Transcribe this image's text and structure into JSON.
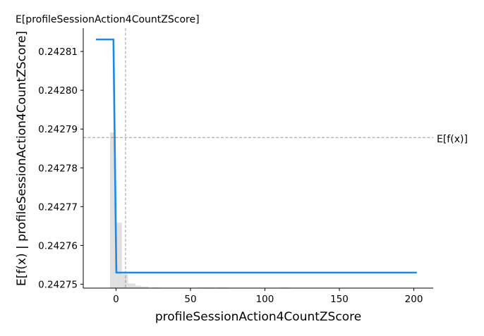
{
  "chart_data": {
    "type": "line",
    "xlabel": "profileSessionAction4CountZScore",
    "ylabel": "E[f(x) | profileSessionAction4CountZScore]",
    "top_label": "E[profileSessionAction4CountZScore]",
    "expected_value_label": "E[f(x)]",
    "xlim": [
      -22,
      213
    ],
    "ylim": [
      0.242749,
      0.242816
    ],
    "x_ticks": [
      0,
      50,
      100,
      150,
      200
    ],
    "y_ticks": [
      0.24275,
      0.24276,
      0.24277,
      0.24278,
      0.24279,
      0.2428,
      0.24281
    ],
    "y_tick_labels": [
      "0.24275",
      "0.24276",
      "0.24277",
      "0.24278",
      "0.24279",
      "0.24280",
      "0.24281"
    ],
    "expected_feature_value": 6.4,
    "expected_prediction": 0.2427878,
    "series": [
      {
        "x": [
          -13.5,
          -1.7,
          0.2,
          202
        ],
        "y": [
          0.2428131,
          0.2428131,
          0.242753,
          0.242753
        ]
      }
    ],
    "histogram": {
      "bins": [
        {
          "x0": -4,
          "x1": -0.5,
          "height": 1.0
        },
        {
          "x0": -0.5,
          "x1": 4,
          "height": 0.42
        },
        {
          "x0": 4,
          "x1": 8,
          "height": 0.09
        },
        {
          "x0": 8,
          "x1": 13,
          "height": 0.03
        },
        {
          "x0": 13,
          "x1": 17,
          "height": 0.015
        },
        {
          "x0": 17,
          "x1": 22,
          "height": 0.01
        },
        {
          "x0": 24,
          "x1": 29,
          "height": 0.005
        },
        {
          "x0": 55,
          "x1": 66,
          "height": 0.004
        },
        {
          "x0": 68,
          "x1": 75,
          "height": 0.004
        },
        {
          "x0": 110,
          "x1": 116,
          "height": 0.004
        }
      ]
    },
    "colors": {
      "line": "#1e88e5",
      "histogram": "#e0e0e0",
      "reference": "#999999",
      "axis": "#000000"
    }
  }
}
